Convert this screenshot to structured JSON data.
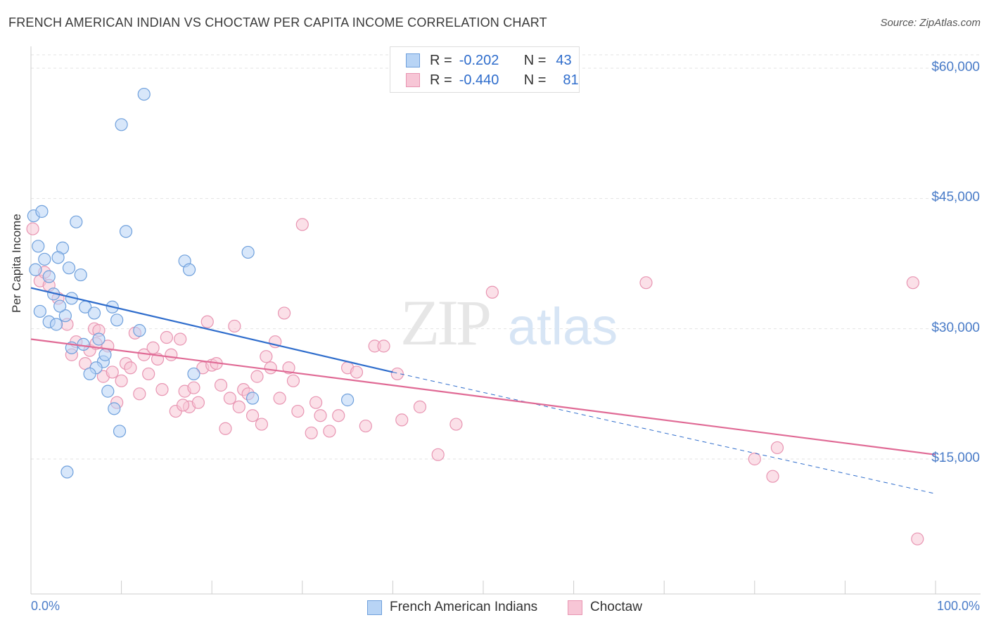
{
  "header": {
    "title": "FRENCH AMERICAN INDIAN VS CHOCTAW PER CAPITA INCOME CORRELATION CHART",
    "source": "Source: ZipAtlas.com"
  },
  "watermark": {
    "zip": "ZIP",
    "atlas": "atlas"
  },
  "legend": {
    "r_label": "R =",
    "n_label": "N =",
    "series": [
      {
        "r": "-0.202",
        "n": "43"
      },
      {
        "r": "-0.440",
        "n": "81"
      }
    ]
  },
  "chart_data": {
    "type": "scatter",
    "title": "FRENCH AMERICAN INDIAN VS CHOCTAW PER CAPITA INCOME CORRELATION CHART",
    "xlabel": "",
    "ylabel": "Per Capita Income",
    "xlim": [
      0,
      100
    ],
    "ylim": [
      0,
      62000
    ],
    "x_tick_labels": [
      "0.0%",
      "100.0%"
    ],
    "y_ticks": [
      15000,
      30000,
      45000,
      60000
    ],
    "y_tick_labels": [
      "$15,000",
      "$30,000",
      "$45,000",
      "$60,000"
    ],
    "grid": true,
    "legend_position": "bottom",
    "colors": {
      "blue_fill": "#b8d4f5",
      "blue_stroke": "#6fa0dc",
      "blue_line": "#2f6dcc",
      "pink_fill": "#f7c6d6",
      "pink_stroke": "#e895b2",
      "pink_line": "#e06a95",
      "tick_text": "#4a7cc8"
    },
    "series": [
      {
        "name": "French American Indians",
        "trend": {
          "x": [
            0,
            40
          ],
          "y": [
            34700,
            25000
          ],
          "dashed_extension_to": [
            100,
            11000
          ]
        },
        "points": [
          [
            0.3,
            43000
          ],
          [
            0.8,
            39500
          ],
          [
            1.2,
            43500
          ],
          [
            1.5,
            38000
          ],
          [
            2.0,
            36000
          ],
          [
            2.5,
            34000
          ],
          [
            3.5,
            39300
          ],
          [
            3.8,
            31500
          ],
          [
            4.5,
            33500
          ],
          [
            5.0,
            42300
          ],
          [
            0.5,
            36800
          ],
          [
            1.0,
            32000
          ],
          [
            2.0,
            30800
          ],
          [
            3.0,
            38200
          ],
          [
            3.2,
            32600
          ],
          [
            4.2,
            37000
          ],
          [
            5.5,
            36200
          ],
          [
            6.0,
            32500
          ],
          [
            7.0,
            31800
          ],
          [
            7.5,
            28800
          ],
          [
            8.0,
            26200
          ],
          [
            9.0,
            32500
          ],
          [
            9.5,
            31000
          ],
          [
            10.0,
            53500
          ],
          [
            10.5,
            41200
          ],
          [
            12.0,
            29800
          ],
          [
            12.5,
            57000
          ],
          [
            17.0,
            37800
          ],
          [
            17.5,
            36800
          ],
          [
            24.0,
            38800
          ],
          [
            8.5,
            22800
          ],
          [
            9.2,
            20800
          ],
          [
            7.2,
            25500
          ],
          [
            6.5,
            24800
          ],
          [
            18.0,
            24800
          ],
          [
            24.5,
            22000
          ],
          [
            35.0,
            21800
          ],
          [
            4.5,
            27800
          ],
          [
            5.8,
            28200
          ],
          [
            8.2,
            27000
          ],
          [
            9.8,
            18200
          ],
          [
            4.0,
            13500
          ],
          [
            2.8,
            30500
          ]
        ]
      },
      {
        "name": "Choctaw",
        "trend": {
          "x": [
            0,
            100
          ],
          "y": [
            28800,
            15500
          ]
        },
        "points": [
          [
            0.2,
            41500
          ],
          [
            1.0,
            35500
          ],
          [
            1.5,
            36500
          ],
          [
            2.0,
            35000
          ],
          [
            3.0,
            33500
          ],
          [
            4.0,
            30500
          ],
          [
            4.5,
            27000
          ],
          [
            5.0,
            28500
          ],
          [
            6.0,
            26000
          ],
          [
            6.5,
            27500
          ],
          [
            7.0,
            30000
          ],
          [
            7.5,
            29800
          ],
          [
            8.0,
            24500
          ],
          [
            8.5,
            28000
          ],
          [
            9.0,
            25000
          ],
          [
            9.5,
            21500
          ],
          [
            10.0,
            24000
          ],
          [
            10.5,
            26000
          ],
          [
            11.0,
            25500
          ],
          [
            11.5,
            29500
          ],
          [
            12.0,
            22500
          ],
          [
            12.5,
            27000
          ],
          [
            13.0,
            24800
          ],
          [
            13.5,
            27800
          ],
          [
            14.0,
            26500
          ],
          [
            14.5,
            23000
          ],
          [
            15.0,
            29000
          ],
          [
            15.5,
            27000
          ],
          [
            16.0,
            20500
          ],
          [
            16.5,
            28800
          ],
          [
            17.0,
            22800
          ],
          [
            17.5,
            21000
          ],
          [
            18.0,
            23200
          ],
          [
            18.5,
            21500
          ],
          [
            19.0,
            25500
          ],
          [
            19.5,
            30800
          ],
          [
            20.0,
            25800
          ],
          [
            20.5,
            26000
          ],
          [
            21.0,
            23500
          ],
          [
            21.5,
            18500
          ],
          [
            22.0,
            22000
          ],
          [
            22.5,
            30300
          ],
          [
            23.0,
            21000
          ],
          [
            23.5,
            23000
          ],
          [
            24.0,
            22500
          ],
          [
            24.5,
            20000
          ],
          [
            25.0,
            24500
          ],
          [
            25.5,
            19000
          ],
          [
            26.0,
            26800
          ],
          [
            26.5,
            25500
          ],
          [
            27.0,
            28500
          ],
          [
            27.5,
            22000
          ],
          [
            28.0,
            31800
          ],
          [
            28.5,
            25500
          ],
          [
            29.0,
            24000
          ],
          [
            29.5,
            20500
          ],
          [
            30.0,
            42000
          ],
          [
            31.0,
            18000
          ],
          [
            31.5,
            21500
          ],
          [
            32.0,
            20000
          ],
          [
            33.0,
            18200
          ],
          [
            34.0,
            20000
          ],
          [
            35.0,
            25500
          ],
          [
            36.0,
            25000
          ],
          [
            37.0,
            18800
          ],
          [
            38.0,
            28000
          ],
          [
            39.0,
            28000
          ],
          [
            40.5,
            24800
          ],
          [
            41.0,
            19500
          ],
          [
            43.0,
            21000
          ],
          [
            45.0,
            15500
          ],
          [
            47.0,
            19000
          ],
          [
            51.0,
            34200
          ],
          [
            68.0,
            35300
          ],
          [
            80.0,
            15000
          ],
          [
            82.0,
            13000
          ],
          [
            82.5,
            16300
          ],
          [
            97.5,
            35300
          ],
          [
            98.0,
            5800
          ],
          [
            7.2,
            28300
          ],
          [
            16.8,
            21200
          ]
        ]
      }
    ]
  }
}
